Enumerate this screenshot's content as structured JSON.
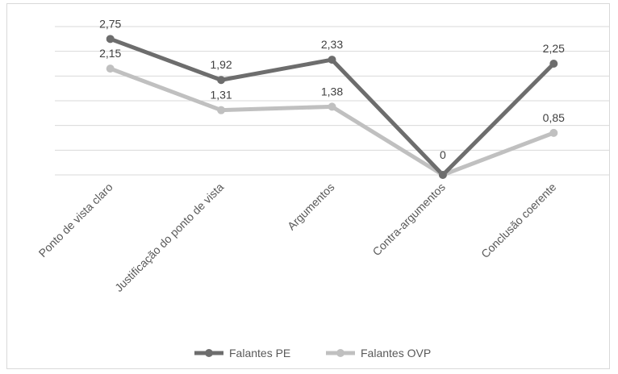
{
  "chart_data": {
    "type": "line",
    "title": "",
    "xlabel": "",
    "ylabel": "",
    "ylim": [
      0,
      3.0
    ],
    "grid": true,
    "legend_position": "bottom",
    "categories": [
      "Ponto de vista claro",
      "Justificação do ponto de vista",
      "Argumentos",
      "Contra-argumentos",
      "Conclusão coerente"
    ],
    "series": [
      {
        "name": "Falantes PE",
        "color": "#6d6d6d",
        "values": [
          2.75,
          1.92,
          2.33,
          0,
          2.25
        ],
        "labels": [
          "2,75",
          "1,92",
          "2,33",
          "0",
          "2,25"
        ]
      },
      {
        "name": "Falantes OVP",
        "color": "#c0c0c0",
        "values": [
          2.15,
          1.31,
          1.38,
          0,
          0.85
        ],
        "labels": [
          "2,15",
          "1,31",
          "1,38",
          "",
          "0,85"
        ]
      }
    ]
  }
}
